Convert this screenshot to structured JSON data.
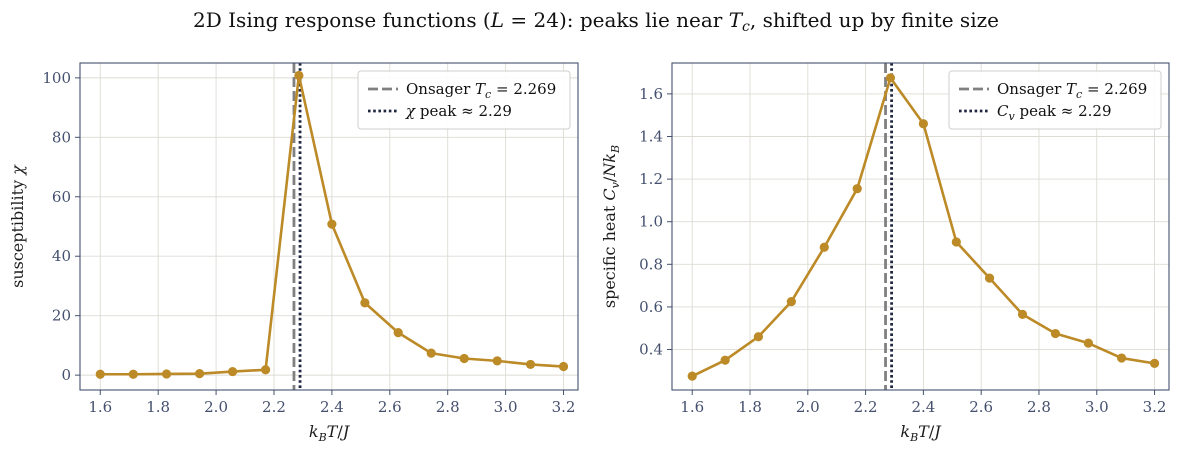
{
  "title": "2D Ising response functions (L = 24): peaks lie near Tc, shifted up by finite size",
  "colors": {
    "series": "#bc8a26",
    "onsager_line": "#808080",
    "peak_line": "#1f2640",
    "grid": "#dddbd3",
    "frame": "#44506e"
  },
  "chart_data": [
    {
      "type": "line",
      "xlabel": "k_B T / J",
      "ylabel": "susceptibility χ",
      "xlim": [
        1.53,
        3.25
      ],
      "ylim": [
        -5,
        105
      ],
      "xticks": [
        1.6,
        1.8,
        2.0,
        2.2,
        2.4,
        2.6,
        2.8,
        3.0,
        3.2
      ],
      "yticks": [
        0,
        20,
        40,
        60,
        80,
        100
      ],
      "grid": true,
      "legend_position": "top-right",
      "series": [
        {
          "x": [
            1.6,
            1.714,
            1.829,
            1.943,
            2.057,
            2.171,
            2.286,
            2.4,
            2.514,
            2.629,
            2.743,
            2.857,
            2.971,
            3.086,
            3.2
          ],
          "values": [
            0.3,
            0.3,
            0.4,
            0.5,
            1.2,
            1.8,
            100.8,
            50.8,
            24.3,
            14.3,
            7.4,
            5.6,
            4.8,
            3.6,
            2.9
          ]
        }
      ],
      "vlines": [
        {
          "x": 2.269,
          "style": "dashed",
          "legend": "Onsager T_c = 2.269"
        },
        {
          "x": 2.29,
          "style": "dotted",
          "legend": "χ peak ≈ 2.29"
        }
      ]
    },
    {
      "type": "line",
      "xlabel": "k_B T / J",
      "ylabel": "specific heat C_v / N k_B",
      "xlim": [
        1.53,
        3.25
      ],
      "ylim": [
        0.21,
        1.745
      ],
      "xticks": [
        1.6,
        1.8,
        2.0,
        2.2,
        2.4,
        2.6,
        2.8,
        3.0,
        3.2
      ],
      "yticks": [
        0.4,
        0.6,
        0.8,
        1.0,
        1.2,
        1.4,
        1.6
      ],
      "grid": true,
      "legend_position": "top-right",
      "series": [
        {
          "x": [
            1.6,
            1.714,
            1.829,
            1.943,
            2.057,
            2.171,
            2.286,
            2.4,
            2.514,
            2.629,
            2.743,
            2.857,
            2.971,
            3.086,
            3.2
          ],
          "values": [
            0.275,
            0.35,
            0.46,
            0.625,
            0.88,
            1.155,
            1.675,
            1.46,
            0.905,
            0.735,
            0.565,
            0.475,
            0.43,
            0.36,
            0.335
          ]
        }
      ],
      "vlines": [
        {
          "x": 2.269,
          "style": "dashed",
          "legend": "Onsager T_c = 2.269"
        },
        {
          "x": 2.29,
          "style": "dotted",
          "legend": "C_v peak ≈ 2.29"
        }
      ]
    }
  ]
}
